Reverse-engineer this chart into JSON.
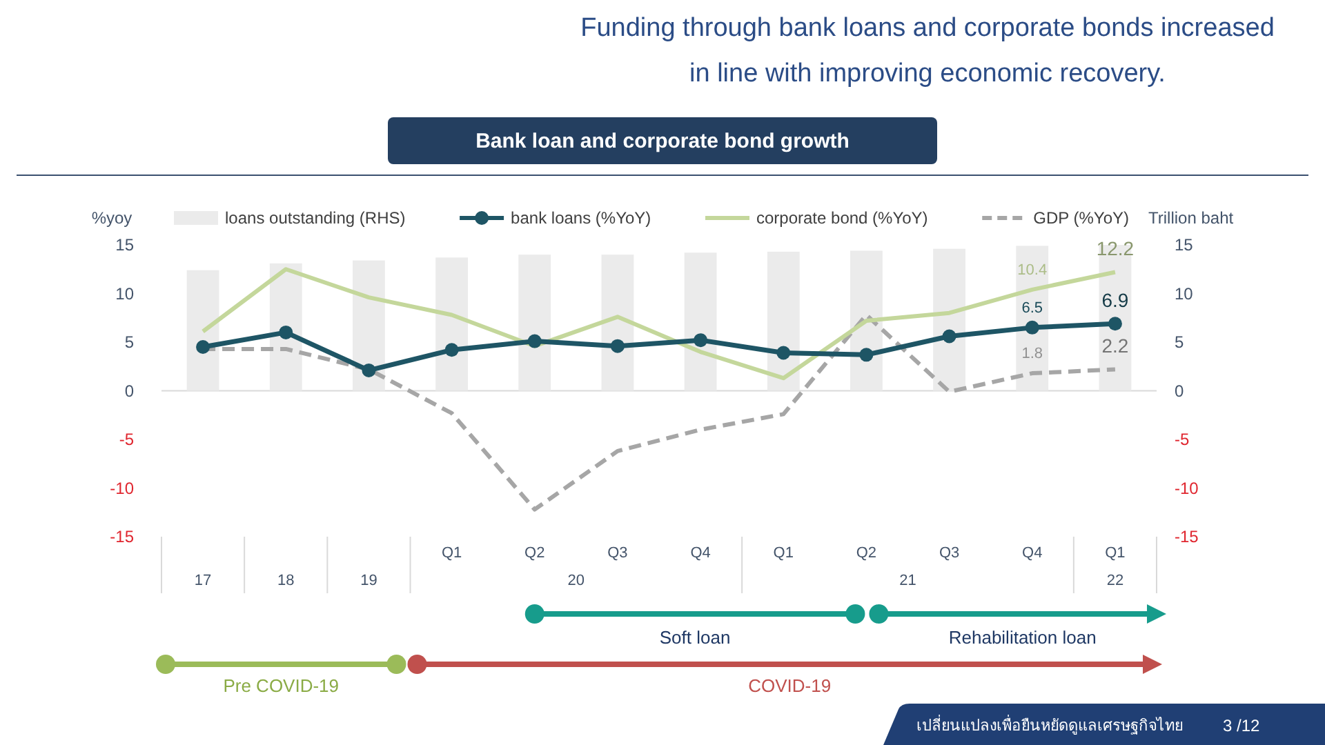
{
  "chart_data": {
    "type": "bar",
    "title": "Funding through bank loans and corporate bonds increased in line with improving economic recovery.",
    "subtitle": "Bank loan and corporate bond growth",
    "ylabel": "%yoy",
    "y2label": "Trillion baht",
    "categories": [
      "17",
      "18",
      "19",
      "Q1",
      "Q2",
      "Q3",
      "Q4",
      "Q1",
      "Q2",
      "Q3",
      "Q4",
      "Q1"
    ],
    "series": [
      {
        "name": "loans outstanding (RHS)",
        "axis": "y2",
        "color": "#ebebeb",
        "values": [
          12.4,
          13.1,
          13.4,
          13.7,
          14.0,
          14.0,
          14.2,
          14.3,
          14.4,
          14.6,
          14.9,
          15.0
        ]
      },
      {
        "name": "bank loans (%YoY)",
        "type": "line",
        "color": "#1e5565",
        "marker": "circle",
        "values": [
          4.5,
          6.0,
          2.1,
          4.2,
          5.1,
          4.6,
          5.2,
          3.9,
          3.7,
          5.6,
          6.5,
          6.9
        ],
        "value_labels": [
          null,
          null,
          null,
          null,
          null,
          null,
          null,
          null,
          null,
          null,
          "6.5",
          "6.9"
        ]
      },
      {
        "name": "corporate bond (%YoY)",
        "type": "line",
        "color": "#c4d79b",
        "values": [
          6.1,
          12.5,
          9.6,
          7.8,
          4.6,
          7.6,
          4.0,
          1.3,
          7.2,
          8.0,
          10.4,
          12.2
        ],
        "value_labels": [
          null,
          null,
          null,
          null,
          null,
          null,
          null,
          null,
          null,
          null,
          "10.4",
          "12.2"
        ]
      },
      {
        "name": "GDP (%YoY)",
        "type": "line",
        "color": "#a6a6a6",
        "line_style": "dashed",
        "values": [
          4.3,
          4.3,
          2.2,
          -2.3,
          -12.2,
          -6.2,
          -4.0,
          -2.4,
          7.8,
          -0.1,
          1.8,
          2.2
        ],
        "value_labels": [
          null,
          null,
          null,
          null,
          null,
          null,
          null,
          null,
          null,
          null,
          "1.8",
          "2.2"
        ]
      }
    ],
    "ylim": [
      -15,
      15
    ],
    "yticks": [
      15,
      10,
      5,
      0,
      -5,
      -10,
      -15
    ],
    "y2lim": [
      -15,
      15
    ],
    "y2ticks": [
      15,
      10,
      5,
      0,
      -5,
      -10,
      -15
    ],
    "ref_lines": [
      {
        "axis": "y",
        "value": 0,
        "color": "#d9d9d9"
      }
    ],
    "legend": "top",
    "grid": false,
    "annotations": [
      "20",
      "21",
      "22",
      "Soft loan",
      "Rehabilitation loan",
      "Pre COVID-19",
      "COVID-19",
      "เปลี่ยนแปลงเพื่อยืนหยัดดูแลเศรษฐกิจไทย",
      "3 /12"
    ]
  }
}
